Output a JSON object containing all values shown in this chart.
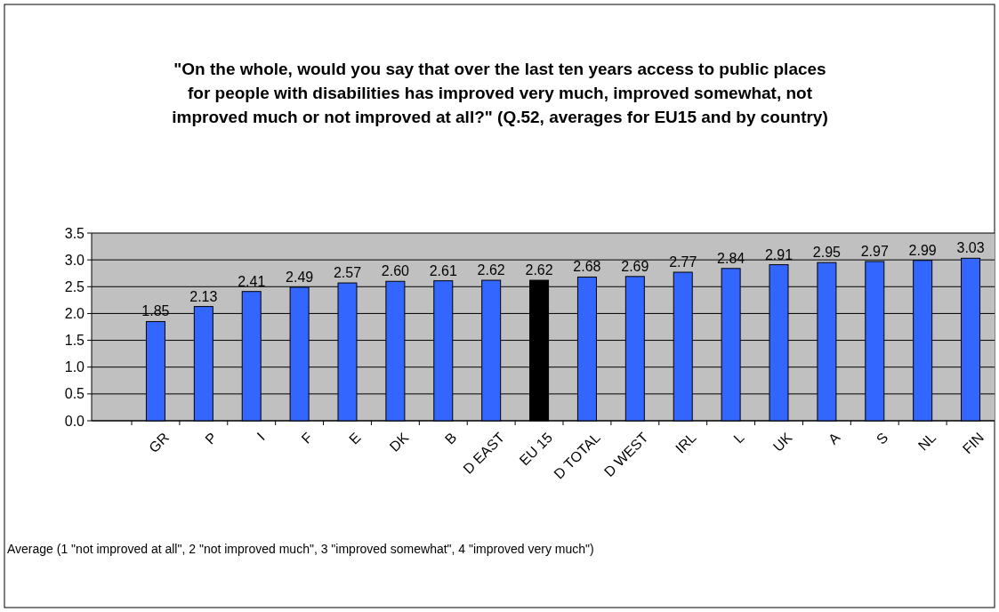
{
  "chart_data": {
    "type": "bar",
    "title": "\"On the whole, would you say that over the last ten years access to public places for people with disabilities has improved very much, improved somewhat, not improved much or not improved at all?\" (Q.52, averages for EU15 and by country)",
    "categories": [
      "GR",
      "P",
      "I",
      "F",
      "E",
      "DK",
      "B",
      "D EAST",
      "EU 15",
      "D TOTAL",
      "D WEST",
      "IRL",
      "L",
      "UK",
      "A",
      "S",
      "NL",
      "FIN"
    ],
    "values": [
      1.85,
      2.13,
      2.41,
      2.49,
      2.57,
      2.6,
      2.61,
      2.62,
      2.62,
      2.68,
      2.69,
      2.77,
      2.84,
      2.91,
      2.95,
      2.97,
      2.99,
      3.03
    ],
    "value_labels": [
      "1.85",
      "2.13",
      "2.41",
      "2.49",
      "2.57",
      "2.60",
      "2.61",
      "2.62",
      "2.62",
      "2.68",
      "2.69",
      "2.77",
      "2.84",
      "2.91",
      "2.95",
      "2.97",
      "2.99",
      "3.03"
    ],
    "colors": [
      "#3366ff",
      "#3366ff",
      "#3366ff",
      "#3366ff",
      "#3366ff",
      "#3366ff",
      "#3366ff",
      "#3366ff",
      "#000000",
      "#3366ff",
      "#3366ff",
      "#3366ff",
      "#3366ff",
      "#3366ff",
      "#3366ff",
      "#3366ff",
      "#3366ff",
      "#3366ff"
    ],
    "ylim": [
      0,
      3.5
    ],
    "yticks": [
      {
        "value": 0,
        "label": "0.0"
      },
      {
        "value": 0.5,
        "label": "0.5"
      },
      {
        "value": 1,
        "label": "1.0"
      },
      {
        "value": 1.5,
        "label": "1.5"
      },
      {
        "value": 2,
        "label": "2.0"
      },
      {
        "value": 2.5,
        "label": "2.5"
      },
      {
        "value": 3,
        "label": "3.0"
      },
      {
        "value": 3.5,
        "label": "3.5"
      }
    ],
    "grid": "y",
    "annotations": [
      "Average (1 \"not improved at all\", 2 \"not improved much\", 3 \"improved somewhat\", 4 \"improved very much\")"
    ]
  }
}
